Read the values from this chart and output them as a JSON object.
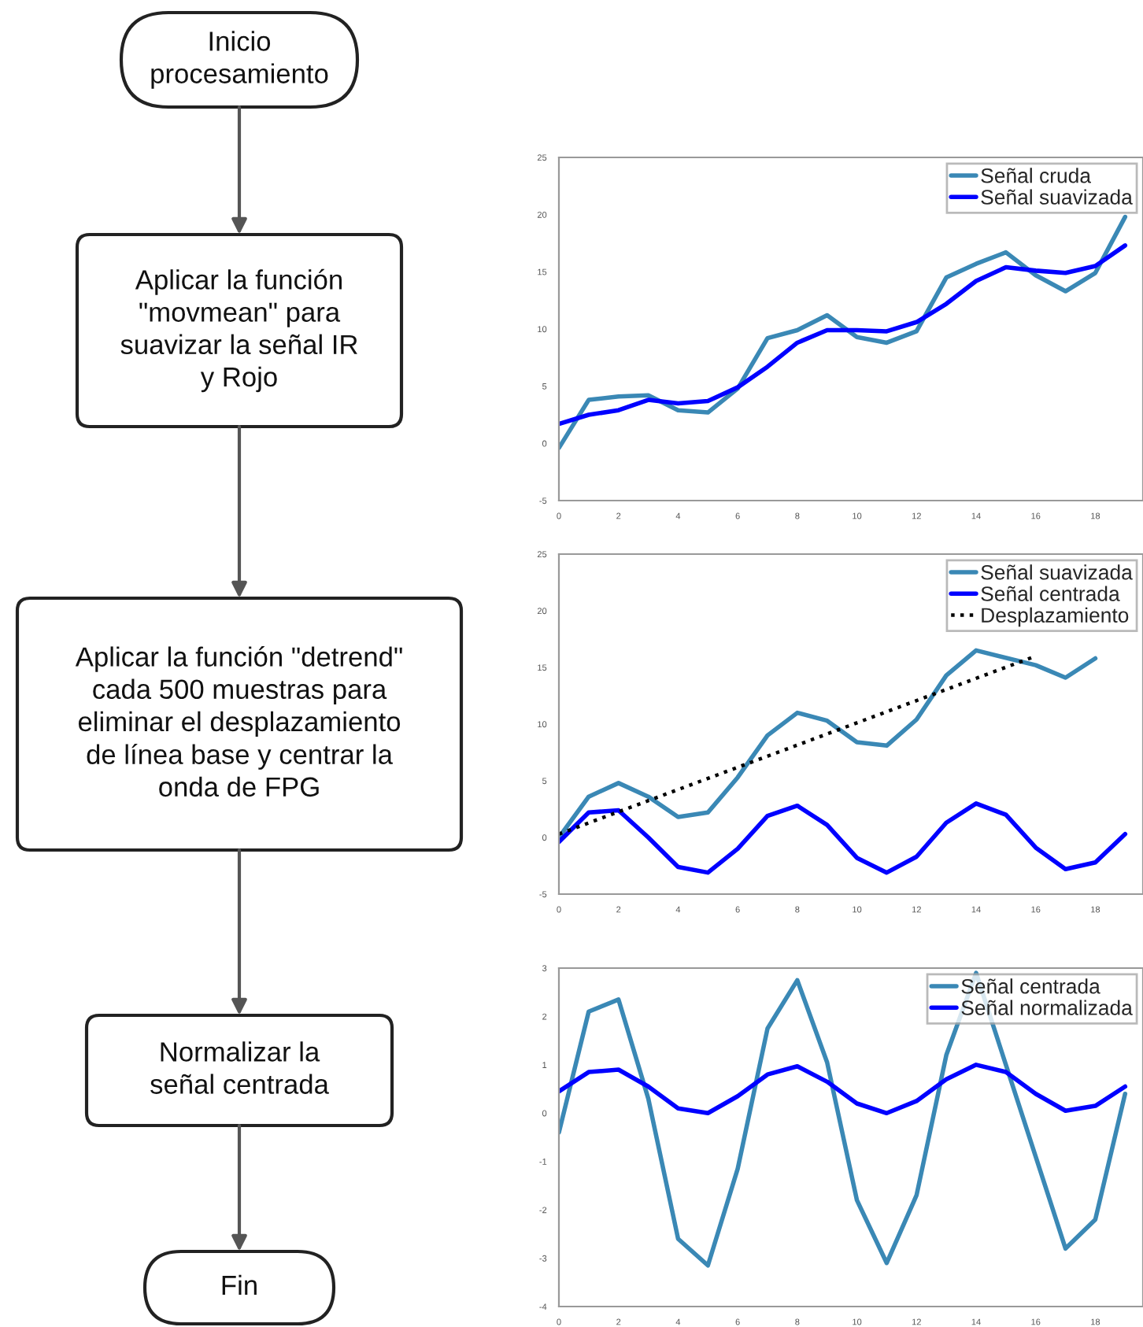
{
  "chart_data": [
    {
      "type": "other",
      "annotations": [
        "Inicio\nprocesamiento",
        "Aplicar la función\n\"movmean\" para\nsuavizar la señal IR\ny Rojo",
        "Aplicar la función \"detrend\"\ncada 500 muestras para\neliminar el desplazamiento\nde línea base y centrar la\nonda de FPG",
        "Normalizar la\nseñal centrada",
        "Fin"
      ]
    },
    {
      "type": "line",
      "x": [
        0,
        1,
        2,
        3,
        4,
        5,
        6,
        7,
        8,
        9,
        10,
        11,
        12,
        13,
        14,
        15,
        16,
        17,
        18,
        19
      ],
      "xlim": [
        0,
        19.6
      ],
      "xticks": [
        0,
        2,
        4,
        6,
        8,
        10,
        12,
        14,
        16,
        18
      ],
      "ylim": [
        -5,
        25
      ],
      "yticks": [
        -5,
        0,
        5,
        10,
        15,
        20,
        25
      ],
      "grid": false,
      "legend": "top right",
      "series": [
        {
          "name": "Señal cruda",
          "color": "#3a88b5",
          "values": [
            -0.4,
            3.8,
            4.1,
            4.2,
            2.9,
            2.7,
            4.8,
            9.2,
            9.9,
            11.2,
            9.3,
            8.8,
            9.8,
            14.5,
            15.7,
            16.7,
            14.7,
            13.3,
            14.9,
            19.8
          ]
        },
        {
          "name": "Señal suavizada",
          "color": "#0000ff",
          "values": [
            1.7,
            2.5,
            2.9,
            3.8,
            3.5,
            3.7,
            4.9,
            6.7,
            8.8,
            9.9,
            9.9,
            9.8,
            10.6,
            12.2,
            14.2,
            15.4,
            15.1,
            14.9,
            15.5,
            17.3
          ]
        }
      ]
    },
    {
      "type": "line",
      "x": [
        0,
        1,
        2,
        3,
        4,
        5,
        6,
        7,
        8,
        9,
        10,
        11,
        12,
        13,
        14,
        15,
        16,
        17,
        18,
        19
      ],
      "xlim": [
        0,
        19.6
      ],
      "xticks": [
        0,
        2,
        4,
        6,
        8,
        10,
        12,
        14,
        16,
        18
      ],
      "ylim": [
        -5,
        25
      ],
      "yticks": [
        -5,
        0,
        5,
        10,
        15,
        20,
        25
      ],
      "grid": false,
      "legend": "top right",
      "series": [
        {
          "name": "Señal suavizada",
          "color": "#3a88b5",
          "values": [
            0.0,
            3.6,
            4.8,
            3.6,
            1.8,
            2.2,
            5.3,
            9.0,
            11.0,
            10.3,
            8.4,
            8.1,
            10.4,
            14.3,
            16.5,
            null,
            15.2,
            14.1,
            15.8,
            null
          ]
        },
        {
          "name": "Señal centrada",
          "color": "#0000ff",
          "values": [
            -0.4,
            2.2,
            2.4,
            0.0,
            -2.6,
            -3.1,
            -1.0,
            1.9,
            2.8,
            1.1,
            -1.8,
            -3.1,
            -1.7,
            1.3,
            3.0,
            2.0,
            -0.9,
            -2.8,
            -2.2,
            0.3
          ]
        },
        {
          "name": "Desplazamiento",
          "color": "#000000",
          "line_style": "dotted",
          "x": [
            0,
            16
          ],
          "values": [
            0.3,
            16.0
          ]
        }
      ]
    },
    {
      "type": "line",
      "x": [
        0,
        1,
        2,
        3,
        4,
        5,
        6,
        7,
        8,
        9,
        10,
        11,
        12,
        13,
        14,
        15,
        16,
        17,
        18,
        19
      ],
      "xlim": [
        0,
        19.6
      ],
      "xticks": [
        0,
        2,
        4,
        6,
        8,
        10,
        12,
        14,
        16,
        18
      ],
      "ylim": [
        -4,
        3
      ],
      "yticks": [
        -4,
        -3,
        -2,
        -1,
        0,
        1,
        2,
        3
      ],
      "grid": false,
      "legend": "top right",
      "series": [
        {
          "name": "Señal centrada",
          "color": "#3a88b5",
          "values": [
            -0.4,
            2.1,
            2.35,
            0.3,
            -2.6,
            -3.15,
            -1.15,
            1.75,
            2.75,
            1.05,
            -1.8,
            -3.1,
            -1.7,
            1.2,
            2.9,
            null,
            -0.9,
            -2.8,
            -2.2,
            0.4
          ]
        },
        {
          "name": "Señal normalizada",
          "color": "#0000ff",
          "values": [
            0.45,
            0.85,
            0.9,
            0.55,
            0.1,
            0.0,
            0.35,
            0.8,
            0.97,
            0.65,
            0.2,
            0.0,
            0.25,
            0.7,
            1.0,
            0.85,
            0.4,
            0.05,
            0.15,
            0.55
          ]
        }
      ]
    }
  ]
}
